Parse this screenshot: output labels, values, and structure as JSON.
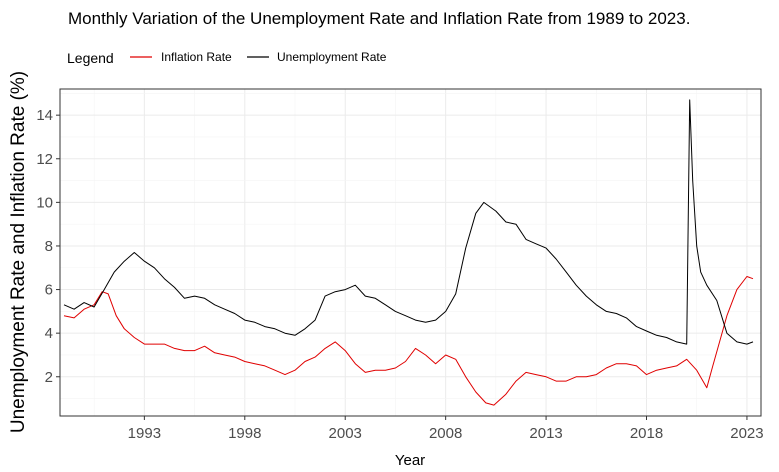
{
  "chart_data": {
    "type": "line",
    "title": "Monthly Variation of the Unemployment Rate and Inflation Rate from 1989 to 2023.",
    "xlabel": "Year",
    "ylabel": "Unemployment Rate and Inflation Rate (%)",
    "xlim": [
      1988.8,
      2023.7
    ],
    "ylim": [
      0.2,
      15.2
    ],
    "x_ticks": [
      1993,
      1998,
      2003,
      2008,
      2013,
      2018,
      2023
    ],
    "y_ticks": [
      2,
      4,
      6,
      8,
      10,
      12,
      14
    ],
    "grid": true,
    "legend": {
      "title": "Legend",
      "position": "top-left"
    },
    "series": [
      {
        "name": "Inflation Rate",
        "color": "#e00000",
        "x": [
          1989.0,
          1989.5,
          1990.0,
          1990.5,
          1990.9,
          1991.2,
          1991.6,
          1992.0,
          1992.5,
          1993.0,
          1993.5,
          1994.0,
          1994.5,
          1995.0,
          1995.5,
          1996.0,
          1996.5,
          1997.0,
          1997.5,
          1998.0,
          1998.5,
          1999.0,
          1999.5,
          2000.0,
          2000.5,
          2001.0,
          2001.5,
          2002.0,
          2002.5,
          2003.0,
          2003.5,
          2004.0,
          2004.5,
          2005.0,
          2005.5,
          2006.0,
          2006.5,
          2007.0,
          2007.5,
          2008.0,
          2008.5,
          2009.0,
          2009.5,
          2010.0,
          2010.4,
          2011.0,
          2011.5,
          2012.0,
          2012.5,
          2013.0,
          2013.5,
          2014.0,
          2014.5,
          2015.0,
          2015.5,
          2016.0,
          2016.5,
          2017.0,
          2017.5,
          2018.0,
          2018.5,
          2019.0,
          2019.5,
          2020.0,
          2020.5,
          2021.0,
          2021.3,
          2021.7,
          2022.0,
          2022.5,
          2023.0,
          2023.3
        ],
        "y": [
          4.8,
          4.7,
          5.1,
          5.3,
          5.9,
          5.8,
          4.8,
          4.2,
          3.8,
          3.5,
          3.5,
          3.5,
          3.3,
          3.2,
          3.2,
          3.4,
          3.1,
          3.0,
          2.9,
          2.7,
          2.6,
          2.5,
          2.3,
          2.1,
          2.3,
          2.7,
          2.9,
          3.3,
          3.6,
          3.2,
          2.6,
          2.2,
          2.3,
          2.3,
          2.4,
          2.7,
          3.3,
          3.0,
          2.6,
          3.0,
          2.8,
          2.0,
          1.3,
          0.8,
          0.7,
          1.2,
          1.8,
          2.2,
          2.1,
          2.0,
          1.8,
          1.8,
          2.0,
          2.0,
          2.1,
          2.4,
          2.6,
          2.6,
          2.5,
          2.1,
          2.3,
          2.4,
          2.5,
          2.8,
          2.3,
          1.5,
          2.5,
          3.8,
          4.8,
          6.0,
          6.6,
          6.5
        ]
      },
      {
        "name": "Unemployment Rate",
        "color": "#000000",
        "x": [
          1989.0,
          1989.5,
          1990.0,
          1990.5,
          1991.0,
          1991.5,
          1992.0,
          1992.5,
          1993.0,
          1993.5,
          1994.0,
          1994.5,
          1995.0,
          1995.5,
          1996.0,
          1996.5,
          1997.0,
          1997.5,
          1998.0,
          1998.5,
          1999.0,
          1999.5,
          2000.0,
          2000.5,
          2001.0,
          2001.5,
          2002.0,
          2002.5,
          2003.0,
          2003.5,
          2004.0,
          2004.5,
          2005.0,
          2005.5,
          2006.0,
          2006.5,
          2007.0,
          2007.5,
          2008.0,
          2008.5,
          2009.0,
          2009.5,
          2009.9,
          2010.5,
          2011.0,
          2011.5,
          2012.0,
          2012.5,
          2013.0,
          2013.5,
          2014.0,
          2014.5,
          2015.0,
          2015.5,
          2016.0,
          2016.5,
          2017.0,
          2017.5,
          2018.0,
          2018.5,
          2019.0,
          2019.5,
          2020.0,
          2020.15,
          2020.3,
          2020.5,
          2020.7,
          2021.0,
          2021.5,
          2022.0,
          2022.5,
          2023.0,
          2023.3
        ],
        "y": [
          5.3,
          5.1,
          5.4,
          5.2,
          6.0,
          6.8,
          7.3,
          7.7,
          7.3,
          7.0,
          6.5,
          6.1,
          5.6,
          5.7,
          5.6,
          5.3,
          5.1,
          4.9,
          4.6,
          4.5,
          4.3,
          4.2,
          4.0,
          3.9,
          4.2,
          4.6,
          5.7,
          5.9,
          6.0,
          6.2,
          5.7,
          5.6,
          5.3,
          5.0,
          4.8,
          4.6,
          4.5,
          4.6,
          5.0,
          5.8,
          7.9,
          9.5,
          10.0,
          9.6,
          9.1,
          9.0,
          8.3,
          8.1,
          7.9,
          7.4,
          6.8,
          6.2,
          5.7,
          5.3,
          5.0,
          4.9,
          4.7,
          4.3,
          4.1,
          3.9,
          3.8,
          3.6,
          3.5,
          14.7,
          11.0,
          8.0,
          6.8,
          6.2,
          5.5,
          4.0,
          3.6,
          3.5,
          3.6
        ]
      }
    ]
  }
}
